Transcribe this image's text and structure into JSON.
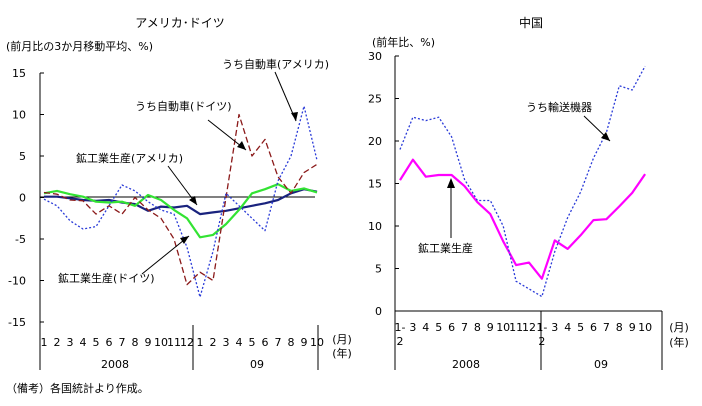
{
  "note": "（備考）各国統計より作成。",
  "chart_data": [
    {
      "type": "line",
      "title": "アメリカ･ドイツ",
      "ylabel": "(前月比の3か月移動平均、%)",
      "ylim": [
        -15,
        15
      ],
      "yticks": [
        "15",
        "10",
        "5",
        "0",
        "-5",
        "-10",
        "-15"
      ],
      "x_tick_labels": [
        "1",
        "2",
        "3",
        "4",
        "5",
        "6",
        "7",
        "8",
        "9",
        "10",
        "11",
        "12",
        "1",
        "2",
        "3",
        "4",
        "5",
        "6",
        "7",
        "8",
        "9",
        "10"
      ],
      "x_unit_month": "(月)",
      "x_unit_year": "(年)",
      "year_labels": [
        "2008",
        "09"
      ],
      "series": [
        {
          "name": "鉱工業生産(アメリカ)",
          "color": "#1a237e",
          "style": "solid",
          "values": [
            0.1,
            0.1,
            -0.1,
            -0.3,
            -0.4,
            -0.3,
            -0.6,
            -0.8,
            -1.6,
            -1.1,
            -1.2,
            -1.0,
            -2.0,
            -1.8,
            -1.6,
            -1.3,
            -1.0,
            -0.7,
            -0.3,
            0.5,
            1.0,
            0.7
          ]
        },
        {
          "name": "鉱工業生産(ドイツ)",
          "color": "#33e333",
          "style": "solid",
          "values": [
            0.5,
            0.8,
            0.4,
            0.1,
            -0.5,
            -0.6,
            -0.5,
            -1.0,
            0.3,
            -0.3,
            -1.5,
            -2.5,
            -4.8,
            -4.5,
            -3.2,
            -1.5,
            0.5,
            1.0,
            1.6,
            0.8,
            1.1,
            0.6
          ]
        },
        {
          "name": "うち自動車(ドイツ)",
          "color": "#8b1a1a",
          "style": "dashed",
          "values": [
            0.6,
            0.4,
            -0.3,
            -0.4,
            -2.0,
            -1.0,
            -2.0,
            0.0,
            -1.5,
            -2.5,
            -5.0,
            -10.5,
            -9.0,
            -10.0,
            0.0,
            10.0,
            5.0,
            7.0,
            2.5,
            0.5,
            3.0,
            4.0
          ]
        },
        {
          "name": "うち自動車(アメリカ)",
          "color": "#2a3bd8",
          "style": "dotted",
          "values": [
            -0.2,
            -1.0,
            -2.8,
            -3.8,
            -3.5,
            -1.0,
            1.5,
            0.8,
            -0.5,
            -1.5,
            -2.0,
            -6.0,
            -12.0,
            -6.5,
            0.5,
            -1.0,
            -2.5,
            -4.0,
            2.0,
            5.0,
            11.0,
            4.5
          ]
        }
      ],
      "annotations": [
        "うち自動車(アメリカ)",
        "うち自動車(ドイツ)",
        "鉱工業生産(アメリカ)",
        "鉱工業生産(ドイツ)"
      ]
    },
    {
      "type": "line",
      "title": "中国",
      "ylabel": "(前年比、%)",
      "ylim": [
        0,
        30
      ],
      "yticks": [
        "30",
        "25",
        "20",
        "15",
        "10",
        "5",
        "0"
      ],
      "x_tick_labels": [
        "1-2",
        "3",
        "4",
        "5",
        "6",
        "7",
        "8",
        "9",
        "10",
        "11",
        "12",
        "1-2",
        "3",
        "4",
        "5",
        "6",
        "7",
        "8",
        "9",
        "10"
      ],
      "x_unit_month": "(月)",
      "x_unit_year": "(年)",
      "year_labels": [
        "2008",
        "09"
      ],
      "series": [
        {
          "name": "鉱工業生産",
          "color": "#ff00ff",
          "style": "solid",
          "values": [
            15.4,
            17.8,
            15.8,
            16.0,
            16.0,
            14.7,
            12.8,
            11.4,
            8.2,
            5.4,
            5.7,
            3.8,
            8.3,
            7.3,
            8.9,
            10.7,
            10.8,
            12.3,
            13.9,
            16.1
          ]
        },
        {
          "name": "うち輸送機器",
          "color": "#2a3bd8",
          "style": "dotted",
          "values": [
            19.0,
            22.8,
            22.4,
            22.8,
            20.5,
            15.5,
            13.0,
            13.0,
            10.0,
            3.5,
            2.6,
            1.7,
            7.0,
            11.0,
            14.0,
            18.0,
            21.0,
            26.5,
            26.0,
            28.8
          ]
        }
      ],
      "annotations": [
        "うち輸送機器",
        "鉱工業生産"
      ]
    }
  ]
}
